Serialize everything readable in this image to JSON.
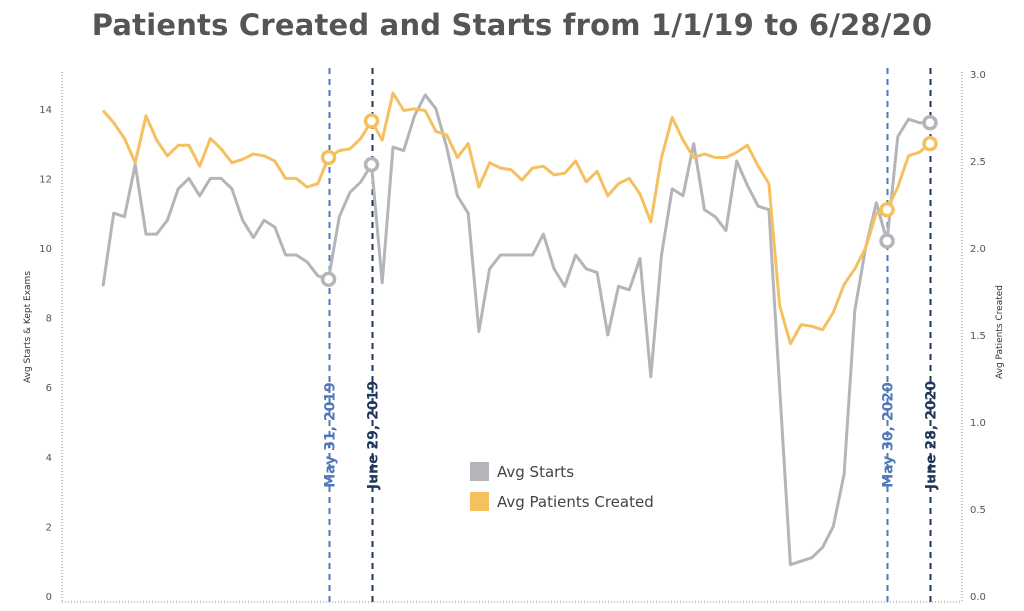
{
  "title": "Patients Created and Starts from 1/1/19 to 6/28/20",
  "chart_data": {
    "type": "line",
    "title": "Patients Created and Starts from 1/1/19 to 6/28/20",
    "ylabel": "Avg Starts & Kept Exams",
    "y2label": "Avg Patients Created",
    "ylim": [
      0,
      15
    ],
    "y2lim": [
      0,
      3.0
    ],
    "yticks": [
      "0",
      "2",
      "4",
      "6",
      "8",
      "10",
      "12",
      "14"
    ],
    "y2ticks": [
      "0.0",
      "0.5",
      "1.0",
      "1.5",
      "2.0",
      "2.5",
      "3.0"
    ],
    "grid": false,
    "legend_position": "center",
    "series": [
      {
        "name": "Avg Starts",
        "axis": "left",
        "color": "#b3b5b8",
        "values": [
          8.9,
          11.0,
          10.9,
          12.4,
          10.4,
          10.4,
          10.8,
          11.7,
          12.0,
          11.5,
          12.0,
          12.0,
          11.7,
          10.8,
          10.3,
          10.8,
          10.6,
          9.8,
          9.8,
          9.6,
          9.2,
          9.1,
          10.9,
          11.6,
          11.9,
          12.4,
          9.0,
          12.9,
          12.8,
          13.8,
          14.4,
          14.0,
          12.9,
          11.5,
          11.0,
          7.6,
          9.4,
          9.8,
          9.8,
          9.8,
          9.8,
          10.4,
          9.4,
          8.9,
          9.8,
          9.4,
          9.3,
          7.5,
          8.9,
          8.8,
          9.7,
          6.3,
          9.8,
          11.7,
          11.5,
          13.0,
          11.1,
          10.9,
          10.5,
          12.5,
          11.8,
          11.2,
          11.1,
          6.0,
          0.9,
          1.0,
          1.1,
          1.4,
          2.0,
          3.5,
          8.2,
          10.0,
          11.3,
          10.2,
          13.2,
          13.7,
          13.6,
          13.6
        ],
        "markers": [
          {
            "index": 21,
            "value": 9.1
          },
          {
            "index": 25,
            "value": 12.4
          },
          {
            "index": 73,
            "value": 10.2
          },
          {
            "index": 77,
            "value": 13.6
          }
        ]
      },
      {
        "name": "Avg Patients Created",
        "axis": "right",
        "color": "#f5c060",
        "values": [
          2.79,
          2.72,
          2.63,
          2.49,
          2.76,
          2.62,
          2.53,
          2.59,
          2.59,
          2.47,
          2.63,
          2.57,
          2.49,
          2.51,
          2.54,
          2.53,
          2.5,
          2.4,
          2.4,
          2.35,
          2.37,
          2.52,
          2.56,
          2.57,
          2.63,
          2.73,
          2.62,
          2.89,
          2.79,
          2.8,
          2.79,
          2.67,
          2.65,
          2.52,
          2.6,
          2.35,
          2.49,
          2.46,
          2.45,
          2.39,
          2.46,
          2.47,
          2.42,
          2.43,
          2.5,
          2.38,
          2.44,
          2.3,
          2.37,
          2.4,
          2.31,
          2.15,
          2.52,
          2.75,
          2.62,
          2.52,
          2.54,
          2.52,
          2.52,
          2.55,
          2.59,
          2.47,
          2.37,
          1.67,
          1.45,
          1.56,
          1.55,
          1.53,
          1.63,
          1.79,
          1.88,
          2.0,
          2.2,
          2.22,
          2.35,
          2.53,
          2.55,
          2.6
        ],
        "markers": [
          {
            "index": 21,
            "value": 2.52
          },
          {
            "index": 25,
            "value": 2.73
          },
          {
            "index": 73,
            "value": 2.22
          },
          {
            "index": 77,
            "value": 2.6
          }
        ]
      }
    ],
    "reference_lines": [
      {
        "label": "May 31, 2019",
        "index": 21,
        "color": "#4f78b8"
      },
      {
        "label": "June 29, 2019",
        "index": 25,
        "color": "#1f3559"
      },
      {
        "label": "May 30, 2020",
        "index": 73,
        "color": "#4f78b8"
      },
      {
        "label": "June 28, 2020",
        "index": 77,
        "color": "#1f3559"
      }
    ]
  }
}
